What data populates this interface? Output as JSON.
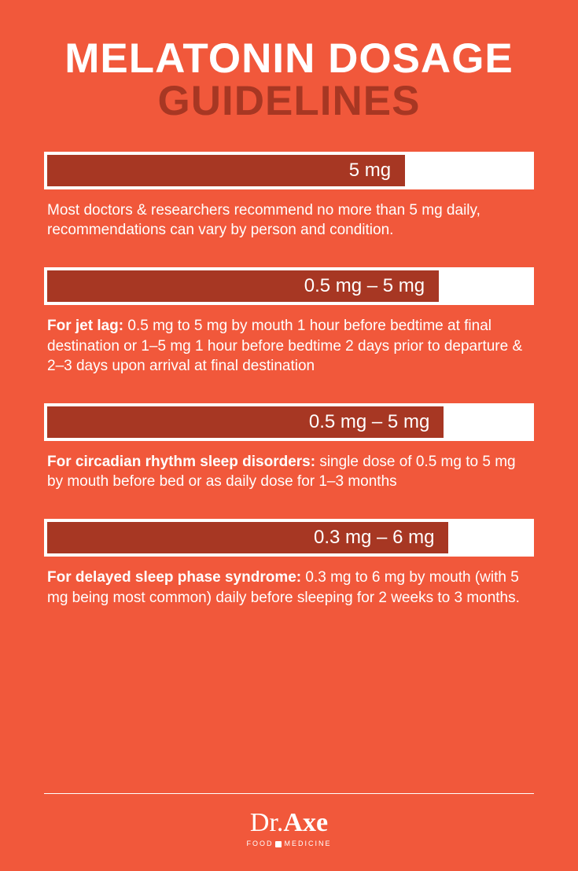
{
  "colors": {
    "background": "#f1583b",
    "bar_outer": "#ffffff",
    "bar_inner": "#a73723",
    "title_main": "#ffffff",
    "title_sub": "#a73723",
    "text": "#ffffff"
  },
  "title": {
    "line1": "MELATONIN DOSAGE",
    "line2": "GUIDELINES"
  },
  "sections": [
    {
      "dose_label": "5 mg",
      "bar_fill_pct": 74,
      "lead": "",
      "body": "Most doctors & researchers recommend no more than 5 mg daily, recommendations can vary by person and condition."
    },
    {
      "dose_label": "0.5 mg – 5 mg",
      "bar_fill_pct": 81,
      "lead": "For jet lag: ",
      "body": "0.5 mg to 5 mg by mouth 1 hour before bedtime at final destination or 1–5 mg 1 hour before bedtime 2 days prior to departure & 2–3 days upon arrival at final destination"
    },
    {
      "dose_label": "0.5 mg – 5 mg",
      "bar_fill_pct": 82,
      "lead": "For circadian rhythm sleep disorders: ",
      "body": "single dose of 0.5 mg to 5 mg by mouth before bed or as daily dose for 1–3 months"
    },
    {
      "dose_label": "0.3 mg – 6 mg",
      "bar_fill_pct": 83,
      "lead": "For delayed sleep phase syndrome: ",
      "body": "0.3 mg to 6 mg by mouth (with 5 mg being most common) daily before sleeping for 2 weeks to 3 months."
    }
  ],
  "footer": {
    "brand_prefix": "Dr.",
    "brand_main": "Axe",
    "tagline_left": "FOOD",
    "tagline_right": "MEDICINE"
  }
}
